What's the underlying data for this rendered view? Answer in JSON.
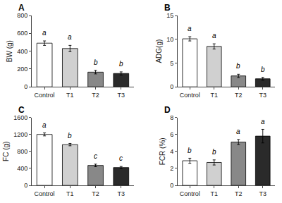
{
  "chart_data": [
    {
      "type": "bar",
      "title": "A",
      "ylabel": "BW (g)",
      "categories": [
        "Control",
        "T1",
        "T2",
        "T3"
      ],
      "values": [
        490,
        430,
        165,
        150
      ],
      "errors": [
        25,
        35,
        20,
        18
      ],
      "annotations": [
        "a",
        "a",
        "b",
        "b"
      ],
      "colors": [
        "#ffffff",
        "#d0d0d0",
        "#888888",
        "#2a2a2a"
      ],
      "ylim": [
        0,
        800
      ],
      "yticks": [
        0,
        200,
        400,
        600,
        800
      ],
      "grid": false
    },
    {
      "type": "bar",
      "title": "B",
      "ylabel": "ADG(g)",
      "categories": [
        "Control",
        "T1",
        "T2",
        "T3"
      ],
      "values": [
        10.1,
        8.5,
        2.3,
        1.7
      ],
      "errors": [
        0.45,
        0.55,
        0.35,
        0.3
      ],
      "annotations": [
        "a",
        "a",
        "b",
        "b"
      ],
      "colors": [
        "#ffffff",
        "#d0d0d0",
        "#888888",
        "#2a2a2a"
      ],
      "ylim": [
        0,
        15
      ],
      "yticks": [
        0,
        5,
        10,
        15
      ],
      "grid": false
    },
    {
      "type": "bar",
      "title": "C",
      "ylabel": "FC (g)",
      "categories": [
        "Control",
        "T1",
        "T2",
        "T3"
      ],
      "values": [
        1200,
        960,
        470,
        420
      ],
      "errors": [
        35,
        28,
        30,
        25
      ],
      "annotations": [
        "a",
        "b",
        "c",
        "c"
      ],
      "colors": [
        "#ffffff",
        "#d0d0d0",
        "#888888",
        "#2a2a2a"
      ],
      "ylim": [
        0,
        1600
      ],
      "yticks": [
        0,
        400,
        800,
        1200,
        1600
      ],
      "grid": false
    },
    {
      "type": "bar",
      "title": "D",
      "ylabel": "FCR (%)",
      "categories": [
        "Control",
        "T1",
        "T2",
        "T3"
      ],
      "values": [
        2.9,
        2.7,
        5.1,
        5.8
      ],
      "errors": [
        0.3,
        0.3,
        0.3,
        0.8
      ],
      "annotations": [
        "b",
        "b",
        "a",
        "a"
      ],
      "colors": [
        "#ffffff",
        "#d0d0d0",
        "#888888",
        "#2a2a2a"
      ],
      "ylim": [
        0,
        8
      ],
      "yticks": [
        0,
        2,
        4,
        6,
        8
      ],
      "grid": false
    }
  ]
}
